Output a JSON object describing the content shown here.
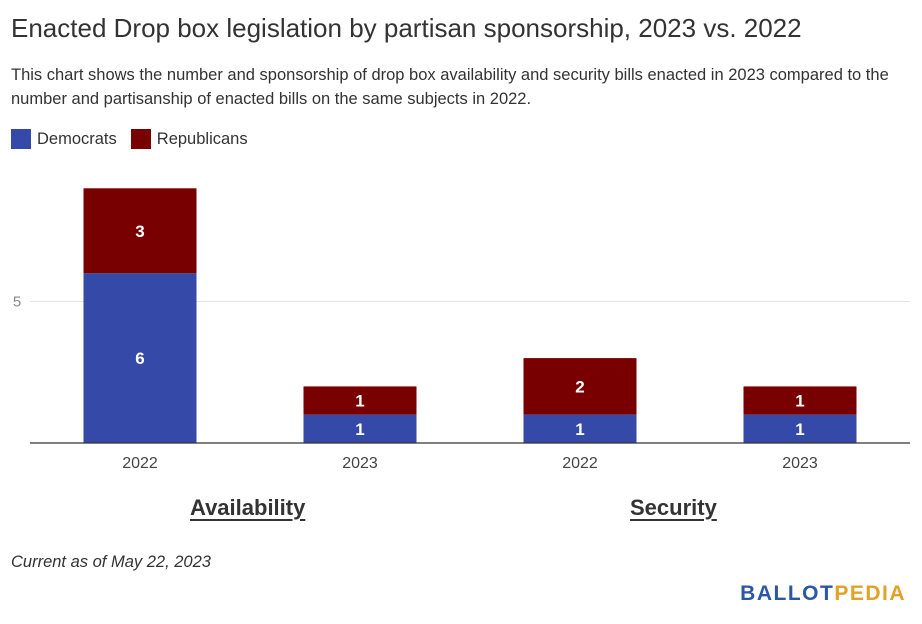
{
  "title": "Enacted Drop box legislation by partisan sponsorship, 2023 vs. 2022",
  "subtitle": "This chart shows the number and sponsorship of drop box availability and security bills enacted in 2023 compared to the number and partisanship of enacted bills on the same subjects in 2022.",
  "legend": [
    {
      "label": "Democrats",
      "color": "#3449a8"
    },
    {
      "label": "Republicans",
      "color": "#780000"
    }
  ],
  "footnote": "Current as of May 22, 2023",
  "brand": {
    "part1": "BALLOT",
    "part2": "PEDIA"
  },
  "chart_data": {
    "type": "bar",
    "stacked": true,
    "categories": [
      "2022",
      "2023",
      "2022",
      "2023"
    ],
    "groups": [
      "Availability",
      "Security"
    ],
    "series": [
      {
        "name": "Democrats",
        "color": "#3449a8",
        "values": [
          6,
          1,
          1,
          1
        ]
      },
      {
        "name": "Republicans",
        "color": "#780000",
        "values": [
          3,
          1,
          2,
          1
        ]
      }
    ],
    "yticks": [
      5
    ],
    "ylim": [
      0,
      10
    ],
    "grid": true,
    "legend_position": "top-left",
    "data_labels": true
  }
}
